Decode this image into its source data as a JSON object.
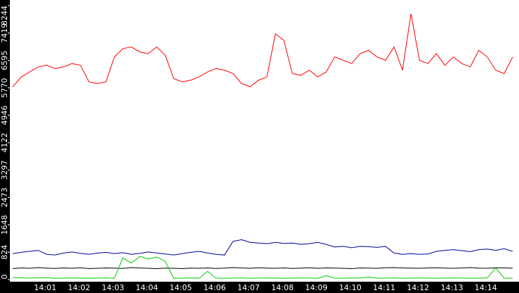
{
  "chart_data": {
    "type": "line",
    "categories": [
      null,
      null,
      null,
      null,
      "14:01",
      null,
      null,
      null,
      "14:02",
      null,
      null,
      null,
      "14:03",
      null,
      null,
      null,
      "14:04",
      null,
      null,
      null,
      "14:05",
      null,
      null,
      null,
      "14:06",
      null,
      null,
      null,
      "14:07",
      null,
      null,
      null,
      "14:08",
      null,
      null,
      null,
      "14:09",
      null,
      null,
      null,
      "14:10",
      null,
      null,
      null,
      "14:11",
      null,
      null,
      null,
      "14:12",
      null,
      null,
      null,
      "14:13",
      null,
      null,
      null,
      "14:14",
      null,
      null,
      null
    ],
    "series": [
      {
        "color": "#ff0000",
        "values": [
          5800,
          6100,
          6250,
          6400,
          6450,
          6350,
          6400,
          6500,
          6450,
          5950,
          5900,
          5950,
          6700,
          6950,
          7000,
          6850,
          6800,
          7000,
          6750,
          6050,
          5950,
          6000,
          6100,
          6250,
          6350,
          6300,
          6200,
          5900,
          5800,
          6000,
          6100,
          7400,
          7200,
          6200,
          6150,
          6300,
          6100,
          6250,
          6700,
          6600,
          6500,
          6800,
          6900,
          6700,
          6600,
          7000,
          6300,
          8000,
          6600,
          6500,
          6800,
          6450,
          6700,
          6500,
          6400,
          6900,
          6700,
          6300,
          6200,
          6700
        ]
      },
      {
        "color": "#0000a0",
        "values": [
          780,
          820,
          850,
          880,
          760,
          740,
          800,
          830,
          790,
          760,
          800,
          820,
          780,
          810,
          760,
          790,
          830,
          800,
          770,
          740,
          780,
          820,
          850,
          800,
          760,
          740,
          1150,
          1200,
          1120,
          1100,
          1080,
          1120,
          1090,
          1100,
          1060,
          1080,
          1120,
          1060,
          980,
          1000,
          960,
          1000,
          990,
          970,
          1000,
          800,
          760,
          780,
          760,
          770,
          850,
          880,
          900,
          870,
          840,
          900,
          920,
          880,
          930,
          850
        ]
      },
      {
        "color": "#000000",
        "values": [
          330,
          350,
          340,
          360,
          345,
          335,
          350,
          340,
          355,
          330,
          340,
          350,
          345,
          335,
          360,
          350,
          340,
          330,
          345,
          340,
          330,
          345,
          340,
          350,
          335,
          345,
          360,
          350,
          340,
          355,
          345,
          340,
          350,
          335,
          345,
          355,
          340,
          350,
          345,
          340,
          330,
          350,
          345,
          340,
          355,
          360,
          350,
          345,
          340,
          350,
          355,
          345,
          340,
          350,
          360,
          345,
          340,
          355,
          350,
          345
        ]
      },
      {
        "color": "#00cc00",
        "values": [
          60,
          50,
          45,
          50,
          55,
          40,
          45,
          50,
          45,
          40,
          45,
          50,
          40,
          650,
          500,
          700,
          620,
          680,
          550,
          40,
          45,
          50,
          40,
          250,
          45,
          40,
          45,
          50,
          40,
          45,
          50,
          45,
          40,
          45,
          50,
          45,
          40,
          120,
          45,
          40,
          50,
          45,
          80,
          40,
          45,
          50,
          40,
          45,
          50,
          45,
          40,
          45,
          50,
          45,
          40,
          45,
          50,
          350,
          45,
          40
        ]
      }
    ],
    "ylim": [
      0,
      8244
    ],
    "yticks": [
      0,
      824,
      1648,
      2473,
      3297,
      4122,
      4946,
      5770,
      6595,
      7419,
      8244
    ]
  }
}
